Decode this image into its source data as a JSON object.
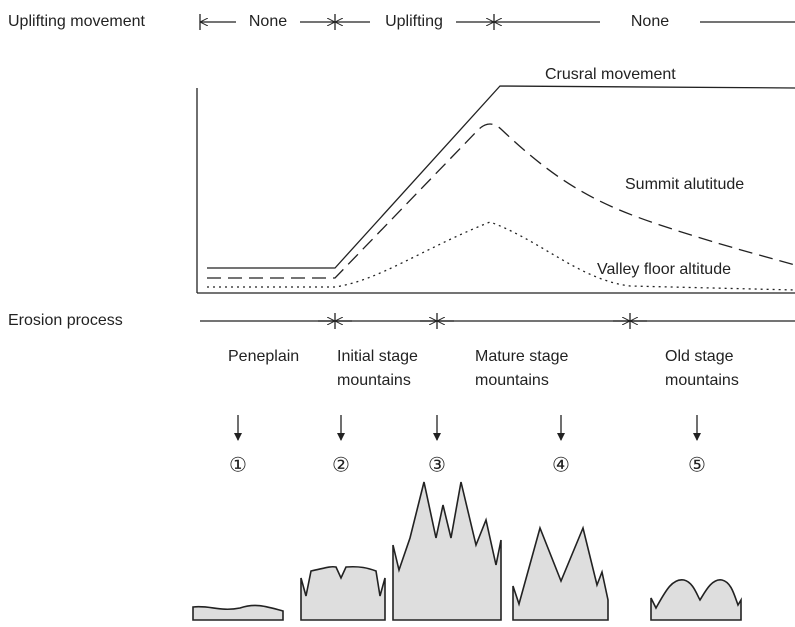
{
  "uplift": {
    "label": "Uplifting movement",
    "phases": [
      "None",
      "Uplifting",
      "None"
    ]
  },
  "curves": {
    "crustal": "Crusral movement",
    "summit": "Summit alutitude",
    "valley": "Valley floor altitude"
  },
  "erosion": {
    "label": "Erosion process",
    "stages": [
      [
        "Peneplain"
      ],
      [
        "Initial stage",
        "mountains"
      ],
      [
        "Mature stage",
        "mountains"
      ],
      [
        "Old stage",
        "mountains"
      ]
    ]
  },
  "markers": [
    "①",
    "②",
    "③",
    "④",
    "⑤"
  ]
}
